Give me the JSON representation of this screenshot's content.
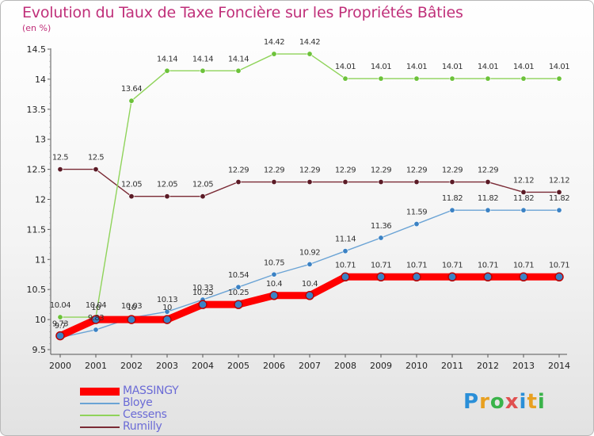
{
  "header": {
    "title": "Evolution du Taux de Taxe Foncière sur les Propriétés Bâties",
    "unit": "(en %)"
  },
  "logo_text": "Proxiti",
  "chart_data": {
    "type": "line",
    "title": "Evolution du Taux de Taxe Foncière sur les Propriétés Bâties",
    "ylabel": "(en %)",
    "xlabel": "",
    "ylim": [
      9.5,
      14.5
    ],
    "yticks": [
      "9.5",
      "10",
      "10.5",
      "11",
      "11.5",
      "12",
      "12.5",
      "13",
      "13.5",
      "14",
      "14.5"
    ],
    "x": [
      "2000",
      "2001",
      "2002",
      "2003",
      "2004",
      "2005",
      "2006",
      "2007",
      "2008",
      "2009",
      "2010",
      "2011",
      "2012",
      "2013",
      "2014"
    ],
    "grid": false,
    "legend_position": "bottom-left",
    "series": [
      {
        "name": "MASSINGY",
        "color": "#ff0000",
        "values": [
          9.73,
          10,
          10,
          10,
          10.25,
          10.25,
          10.4,
          10.4,
          10.71,
          10.71,
          10.71,
          10.71,
          10.71,
          10.71,
          10.71
        ],
        "labels": [
          "9.73",
          "10",
          "10",
          "10",
          "10.25",
          "10.25",
          "10.4",
          "10.4",
          "10.71",
          "10.71",
          "10.71",
          "10.71",
          "10.71",
          "10.71",
          "10.71"
        ]
      },
      {
        "name": "Bloye",
        "color": "#6aa3d5",
        "values": [
          9.7,
          9.83,
          10.03,
          10.13,
          10.33,
          10.54,
          10.75,
          10.92,
          11.14,
          11.36,
          11.59,
          11.82,
          11.82,
          11.82,
          11.82
        ],
        "labels": [
          "9.7",
          "9.83",
          "10.03",
          "10.13",
          "10.33",
          "10.54",
          "10.75",
          "10.92",
          "11.14",
          "11.36",
          "11.59",
          "11.82",
          "11.82",
          "11.82",
          "11.82"
        ]
      },
      {
        "name": "Cessens",
        "color": "#8fd35a",
        "values": [
          10.04,
          10.04,
          13.64,
          14.14,
          14.14,
          14.14,
          14.42,
          14.42,
          14.01,
          14.01,
          14.01,
          14.01,
          14.01,
          14.01,
          14.01
        ],
        "labels": [
          "10.04",
          "10.04",
          "13.64",
          "14.14",
          "14.14",
          "14.14",
          "14.42",
          "14.42",
          "14.01",
          "14.01",
          "14.01",
          "14.01",
          "14.01",
          "14.01",
          "14.01"
        ]
      },
      {
        "name": "Rumilly",
        "color": "#7a2a35",
        "values": [
          12.5,
          12.5,
          12.05,
          12.05,
          12.05,
          12.29,
          12.29,
          12.29,
          12.29,
          12.29,
          12.29,
          12.29,
          12.29,
          12.12,
          12.12
        ],
        "labels": [
          "12.5",
          "12.5",
          "12.05",
          "12.05",
          "12.05",
          "12.29",
          "12.29",
          "12.29",
          "12.29",
          "12.29",
          "12.29",
          "12.29",
          "12.29",
          "12.12",
          "12.12"
        ]
      }
    ]
  }
}
